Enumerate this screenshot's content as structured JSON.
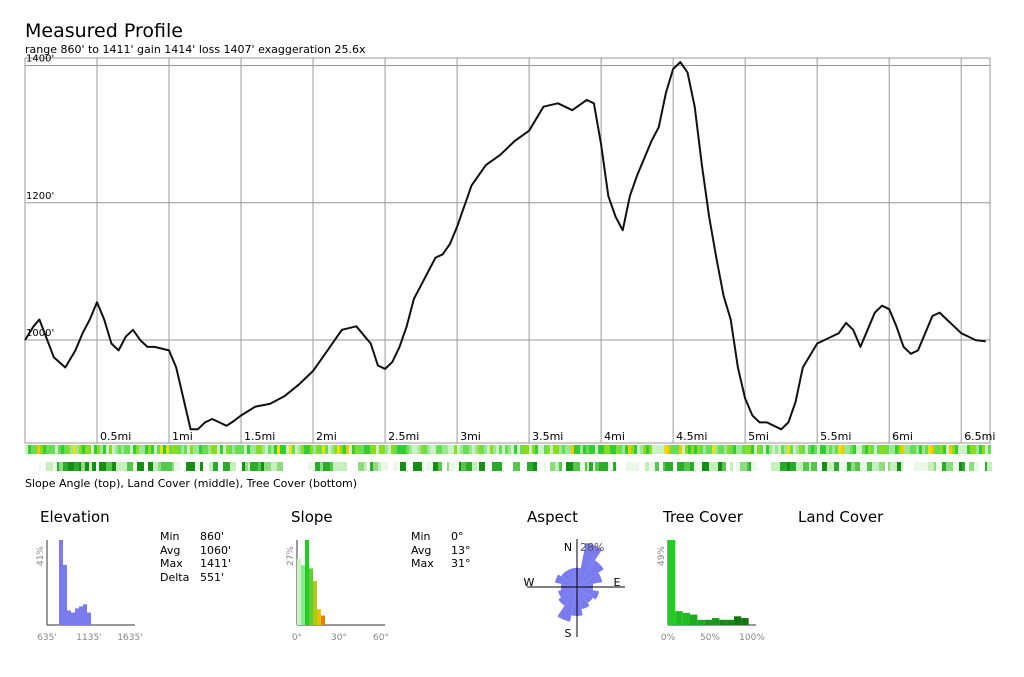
{
  "header": {
    "title": "Measured Profile",
    "subtitle": "range 860' to 1411'  gain 1414'  loss 1407'  exaggeration 25.6x"
  },
  "legend_note": "Slope Angle (top), Land Cover (middle), Tree Cover (bottom)",
  "colors": {
    "profile_line": "#111111",
    "grid": "#9a9a9a",
    "hist_elev": "#7b7bf0",
    "aspect": "#7b7bf0",
    "tree": "#22cc22"
  },
  "chart_data": [
    {
      "type": "line",
      "title": "Measured Profile",
      "x_unit": "mi",
      "y_unit": "ft",
      "xlim": [
        0,
        6.7
      ],
      "ylim": [
        850,
        1411
      ],
      "x_tick_labels": [
        "0.5mi",
        "1mi",
        "1.5mi",
        "2mi",
        "2.5mi",
        "3mi",
        "3.5mi",
        "4mi",
        "4.5mi",
        "5mi",
        "5.5mi",
        "6mi",
        "6.5mi"
      ],
      "x_ticks": [
        0.5,
        1,
        1.5,
        2,
        2.5,
        3,
        3.5,
        4,
        4.5,
        5,
        5.5,
        6,
        6.5
      ],
      "y_tick_labels": [
        "1000'",
        "1200'",
        "1400'"
      ],
      "y_ticks": [
        1000,
        1200,
        1400
      ],
      "grid": true,
      "x": [
        0,
        0.06,
        0.1,
        0.2,
        0.28,
        0.35,
        0.4,
        0.45,
        0.5,
        0.55,
        0.6,
        0.65,
        0.7,
        0.75,
        0.8,
        0.85,
        0.9,
        1.0,
        1.05,
        1.1,
        1.15,
        1.2,
        1.25,
        1.3,
        1.35,
        1.4,
        1.45,
        1.5,
        1.6,
        1.7,
        1.8,
        1.9,
        2.0,
        2.1,
        2.2,
        2.3,
        2.4,
        2.45,
        2.5,
        2.55,
        2.6,
        2.65,
        2.7,
        2.75,
        2.8,
        2.85,
        2.9,
        2.95,
        3.0,
        3.05,
        3.1,
        3.2,
        3.3,
        3.4,
        3.5,
        3.6,
        3.7,
        3.8,
        3.9,
        3.95,
        4.0,
        4.05,
        4.1,
        4.15,
        4.2,
        4.25,
        4.3,
        4.35,
        4.4,
        4.45,
        4.5,
        4.55,
        4.6,
        4.65,
        4.7,
        4.75,
        4.8,
        4.85,
        4.9,
        4.95,
        5.0,
        5.05,
        5.1,
        5.15,
        5.2,
        5.25,
        5.3,
        5.35,
        5.4,
        5.5,
        5.6,
        5.65,
        5.7,
        5.75,
        5.8,
        5.85,
        5.9,
        5.95,
        6.0,
        6.05,
        6.1,
        6.15,
        6.2,
        6.25,
        6.3,
        6.35,
        6.4,
        6.45,
        6.5,
        6.55,
        6.6,
        6.67
      ],
      "y": [
        1000,
        1020,
        1030,
        975,
        960,
        985,
        1010,
        1030,
        1055,
        1030,
        995,
        985,
        1005,
        1015,
        1000,
        990,
        990,
        985,
        960,
        915,
        870,
        870,
        880,
        885,
        880,
        875,
        882,
        890,
        903,
        907,
        918,
        935,
        955,
        985,
        1015,
        1020,
        995,
        963,
        958,
        968,
        990,
        1020,
        1060,
        1080,
        1100,
        1120,
        1125,
        1140,
        1165,
        1195,
        1225,
        1255,
        1270,
        1290,
        1305,
        1340,
        1345,
        1335,
        1350,
        1345,
        1285,
        1210,
        1180,
        1160,
        1210,
        1240,
        1265,
        1290,
        1310,
        1360,
        1395,
        1405,
        1390,
        1340,
        1255,
        1180,
        1120,
        1065,
        1030,
        960,
        915,
        890,
        880,
        880,
        875,
        870,
        880,
        910,
        960,
        995,
        1005,
        1010,
        1025,
        1015,
        990,
        1015,
        1040,
        1050,
        1045,
        1020,
        990,
        980,
        985,
        1010,
        1035,
        1040,
        1030,
        1020,
        1010,
        1005,
        1000,
        998
      ]
    },
    {
      "type": "bar",
      "title": "Elevation",
      "x_tick_labels": [
        "635'",
        "1135'",
        "1635'"
      ],
      "y_max_label": "41%",
      "values": [
        0,
        0,
        0,
        41,
        29,
        7,
        6,
        8,
        9,
        10,
        6,
        0,
        0,
        0,
        0,
        0,
        0,
        0,
        0,
        0,
        0,
        0
      ]
    },
    {
      "type": "bar",
      "title": "Slope",
      "x_tick_labels": [
        "0°",
        "30°",
        "60°"
      ],
      "y_max_label": "27%",
      "values": [
        21,
        19,
        27,
        18,
        14,
        5,
        3,
        0,
        0,
        0,
        0,
        0,
        0,
        0,
        0,
        0,
        0,
        0,
        0,
        0,
        0,
        0
      ],
      "colors": [
        "#c8f0c0",
        "#88e888",
        "#22cc22",
        "#66cc33",
        "#aacc11",
        "#e8c000",
        "#e08000",
        "#e08000",
        "#e08000",
        "#e08000",
        "#e08000",
        "#e08000",
        "#e08000",
        "#e08000",
        "#e08000",
        "#e08000",
        "#e08000",
        "#e08000",
        "#e08000",
        "#e08000",
        "#e08000",
        "#e08000"
      ]
    },
    {
      "type": "bar",
      "title": "Tree Cover",
      "x_tick_labels": [
        "0%",
        "50%",
        "100%"
      ],
      "y_max_label": "49%",
      "values": [
        49,
        8,
        7,
        6,
        3,
        3,
        4,
        3,
        3,
        5,
        4,
        0
      ],
      "colors": [
        "#22cc22",
        "#22bb22",
        "#22bb22",
        "#1eaa1e",
        "#1eaa1e",
        "#1a991a",
        "#1a991a",
        "#168816",
        "#168816",
        "#127712",
        "#127712",
        "#127712"
      ]
    },
    {
      "type": "pie",
      "title": "Aspect",
      "direction_labels": [
        "N",
        "E",
        "S",
        "W"
      ],
      "max_label": "28%",
      "values": [
        12,
        28,
        20,
        16,
        10,
        14,
        12,
        14,
        18,
        22,
        14,
        12,
        10,
        14,
        12,
        12
      ]
    }
  ],
  "elevation_stats": [
    {
      "label": "Min",
      "value": "860'"
    },
    {
      "label": "Avg",
      "value": "1060'"
    },
    {
      "label": "Max",
      "value": "1411'"
    },
    {
      "label": "Delta",
      "value": "551'"
    }
  ],
  "slope_stats": [
    {
      "label": "Min",
      "value": "0°"
    },
    {
      "label": "Avg",
      "value": "13°"
    },
    {
      "label": "Max",
      "value": "31°"
    }
  ],
  "sections": {
    "elevation": "Elevation",
    "slope": "Slope",
    "aspect": "Aspect",
    "tree_cover": "Tree Cover",
    "land_cover": "Land Cover"
  }
}
